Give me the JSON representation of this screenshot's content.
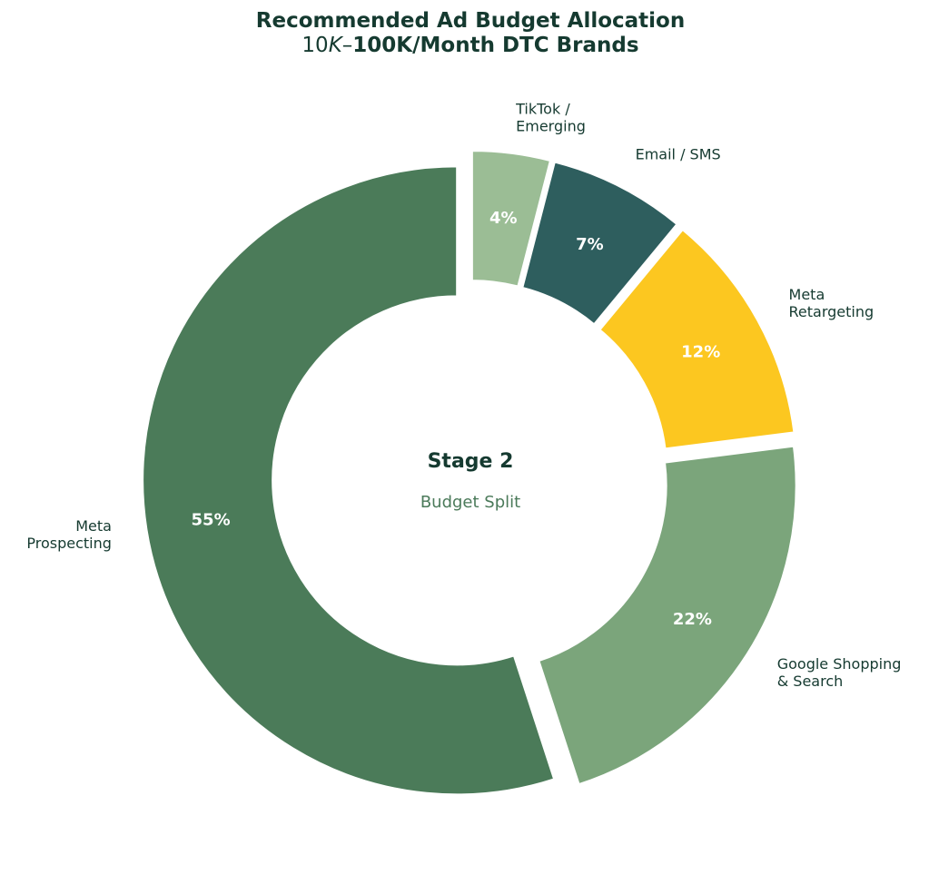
{
  "chart_data": {
    "type": "pie",
    "title": {
      "line1": "Recommended Ad Budget Allocation",
      "line2_prefix": "10",
      "line2_k": "K",
      "line2_dash": "–",
      "line2_rest": "100K/Month DTC Brands"
    },
    "center": {
      "title": "Stage 2",
      "subtitle": "Budget Split"
    },
    "slices": [
      {
        "name": "TikTok / Emerging",
        "label_lines": [
          "TikTok /",
          "Emerging"
        ],
        "value": 4,
        "pct_label": "4%",
        "color": "#9bbd95"
      },
      {
        "name": "Email / SMS",
        "label_lines": [
          "Email / SMS"
        ],
        "value": 7,
        "pct_label": "7%",
        "color": "#2e5e5e"
      },
      {
        "name": "Meta Retargeting",
        "label_lines": [
          "Meta",
          "Retargeting"
        ],
        "value": 12,
        "pct_label": "12%",
        "color": "#fcc720"
      },
      {
        "name": "Google Shopping & Search",
        "label_lines": [
          "Google Shopping",
          "& Search"
        ],
        "value": 22,
        "pct_label": "22%",
        "color": "#7ba57b"
      },
      {
        "name": "Meta Prospecting",
        "label_lines": [
          "Meta",
          "Prospecting"
        ],
        "value": 55,
        "pct_label": "55%",
        "color": "#4b7b59"
      }
    ]
  }
}
